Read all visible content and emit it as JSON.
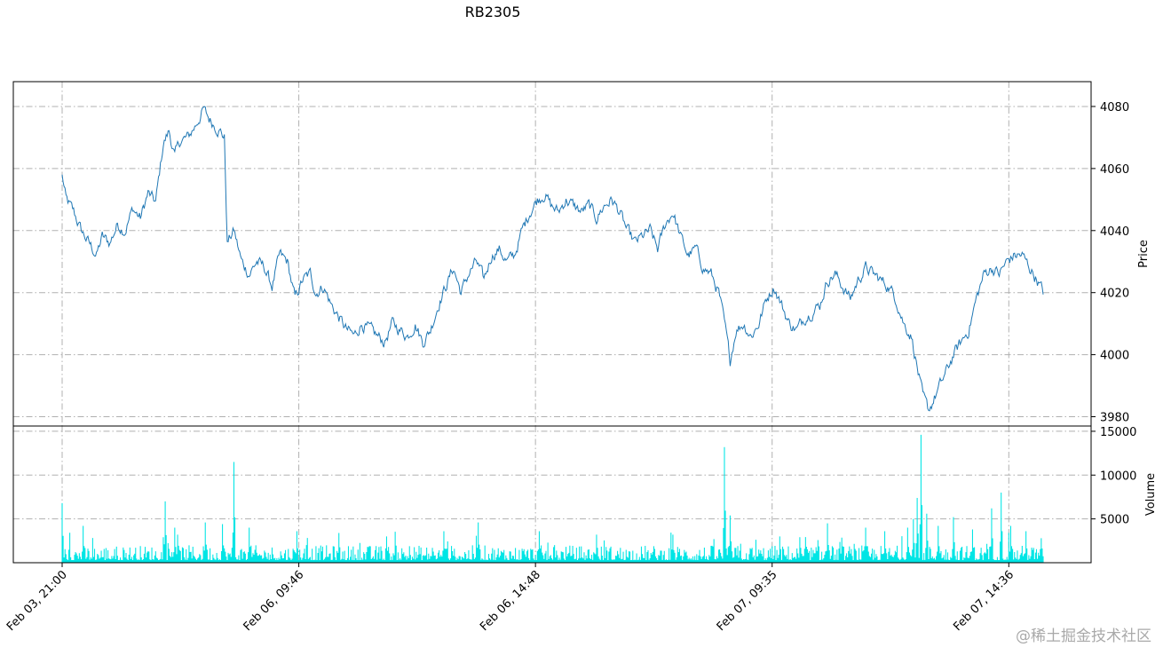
{
  "chart_data": {
    "type": "line",
    "title": "RB2305",
    "price_panel": {
      "ylabel": "Price",
      "ylim": [
        3977,
        4088
      ],
      "yticks": [
        3980,
        4000,
        4020,
        4040,
        4060,
        4080
      ],
      "line_color": "#1f77b4",
      "anchors": [
        [
          0,
          4058
        ],
        [
          4,
          4050
        ],
        [
          12,
          4046
        ],
        [
          20,
          4040
        ],
        [
          28,
          4036
        ],
        [
          36,
          4032
        ],
        [
          42,
          4038
        ],
        [
          50,
          4036
        ],
        [
          58,
          4042
        ],
        [
          66,
          4040
        ],
        [
          74,
          4047
        ],
        [
          82,
          4044
        ],
        [
          90,
          4052
        ],
        [
          98,
          4049
        ],
        [
          106,
          4068
        ],
        [
          112,
          4072
        ],
        [
          118,
          4064
        ],
        [
          124,
          4069
        ],
        [
          132,
          4070
        ],
        [
          140,
          4074
        ],
        [
          148,
          4079
        ],
        [
          154,
          4076
        ],
        [
          160,
          4074
        ],
        [
          166,
          4072
        ],
        [
          170,
          4070
        ],
        [
          173,
          4036
        ],
        [
          180,
          4040
        ],
        [
          188,
          4030
        ],
        [
          196,
          4026
        ],
        [
          204,
          4030
        ],
        [
          212,
          4028
        ],
        [
          220,
          4022
        ],
        [
          228,
          4032
        ],
        [
          236,
          4030
        ],
        [
          244,
          4018
        ],
        [
          252,
          4024
        ],
        [
          260,
          4026
        ],
        [
          266,
          4020
        ],
        [
          274,
          4022
        ],
        [
          282,
          4016
        ],
        [
          290,
          4012
        ],
        [
          298,
          4008
        ],
        [
          306,
          4006
        ],
        [
          314,
          4010
        ],
        [
          322,
          4008
        ],
        [
          330,
          4006
        ],
        [
          338,
          4004
        ],
        [
          346,
          4010
        ],
        [
          354,
          4008
        ],
        [
          362,
          4006
        ],
        [
          370,
          4010
        ],
        [
          378,
          4004
        ],
        [
          386,
          4008
        ],
        [
          394,
          4016
        ],
        [
          402,
          4022
        ],
        [
          410,
          4028
        ],
        [
          418,
          4020
        ],
        [
          426,
          4026
        ],
        [
          434,
          4030
        ],
        [
          442,
          4024
        ],
        [
          450,
          4032
        ],
        [
          458,
          4034
        ],
        [
          466,
          4030
        ],
        [
          474,
          4032
        ],
        [
          482,
          4040
        ],
        [
          490,
          4046
        ],
        [
          498,
          4050
        ],
        [
          506,
          4052
        ],
        [
          512,
          4048
        ],
        [
          520,
          4046
        ],
        [
          528,
          4050
        ],
        [
          536,
          4048
        ],
        [
          544,
          4046
        ],
        [
          552,
          4048
        ],
        [
          560,
          4044
        ],
        [
          568,
          4048
        ],
        [
          576,
          4050
        ],
        [
          584,
          4046
        ],
        [
          592,
          4040
        ],
        [
          600,
          4036
        ],
        [
          608,
          4038
        ],
        [
          616,
          4040
        ],
        [
          624,
          4034
        ],
        [
          632,
          4042
        ],
        [
          640,
          4046
        ],
        [
          648,
          4038
        ],
        [
          656,
          4032
        ],
        [
          664,
          4034
        ],
        [
          672,
          4028
        ],
        [
          680,
          4026
        ],
        [
          688,
          4020
        ],
        [
          694,
          4010
        ],
        [
          700,
          3998
        ],
        [
          706,
          4008
        ],
        [
          714,
          4010
        ],
        [
          722,
          4006
        ],
        [
          730,
          4010
        ],
        [
          738,
          4018
        ],
        [
          746,
          4022
        ],
        [
          754,
          4016
        ],
        [
          762,
          4010
        ],
        [
          770,
          4008
        ],
        [
          778,
          4012
        ],
        [
          786,
          4014
        ],
        [
          794,
          4016
        ],
        [
          802,
          4024
        ],
        [
          810,
          4026
        ],
        [
          818,
          4022
        ],
        [
          826,
          4018
        ],
        [
          834,
          4024
        ],
        [
          842,
          4028
        ],
        [
          850,
          4026
        ],
        [
          858,
          4024
        ],
        [
          866,
          4022
        ],
        [
          874,
          4018
        ],
        [
          882,
          4010
        ],
        [
          890,
          4006
        ],
        [
          896,
          3996
        ],
        [
          902,
          3986
        ],
        [
          908,
          3982
        ],
        [
          914,
          3986
        ],
        [
          920,
          3990
        ],
        [
          926,
          3994
        ],
        [
          934,
          4000
        ],
        [
          942,
          4004
        ],
        [
          950,
          4008
        ],
        [
          958,
          4018
        ],
        [
          966,
          4026
        ],
        [
          974,
          4028
        ],
        [
          982,
          4026
        ],
        [
          990,
          4030
        ],
        [
          998,
          4032
        ],
        [
          1006,
          4032
        ],
        [
          1014,
          4028
        ],
        [
          1022,
          4024
        ],
        [
          1028,
          4020
        ]
      ]
    },
    "volume_panel": {
      "ylabel": "Volume",
      "ylim": [
        0,
        15600
      ],
      "yticks": [
        5000,
        10000,
        15000
      ],
      "bar_color": "#00e5e5",
      "spikes": [
        [
          0,
          6800
        ],
        [
          22,
          4200
        ],
        [
          108,
          7000
        ],
        [
          118,
          4000
        ],
        [
          150,
          4600
        ],
        [
          168,
          4400
        ],
        [
          180,
          11500
        ],
        [
          196,
          4000
        ],
        [
          246,
          3600
        ],
        [
          290,
          3400
        ],
        [
          340,
          3000
        ],
        [
          400,
          3600
        ],
        [
          436,
          4600
        ],
        [
          500,
          3600
        ],
        [
          560,
          3200
        ],
        [
          640,
          3200
        ],
        [
          694,
          13200
        ],
        [
          700,
          5400
        ],
        [
          752,
          3000
        ],
        [
          802,
          4500
        ],
        [
          842,
          4000
        ],
        [
          862,
          3600
        ],
        [
          886,
          4000
        ],
        [
          892,
          5000
        ],
        [
          896,
          7400
        ],
        [
          900,
          14600
        ],
        [
          906,
          5600
        ],
        [
          918,
          4200
        ],
        [
          934,
          5200
        ],
        [
          954,
          3800
        ],
        [
          974,
          6200
        ],
        [
          984,
          8000
        ],
        [
          994,
          4200
        ],
        [
          1010,
          3600
        ],
        [
          1026,
          2800
        ]
      ]
    },
    "x_axis": {
      "n_points": 1029,
      "tick_labels": [
        "Feb 03, 21:00",
        "Feb 06, 09:46",
        "Feb 06, 14:48",
        "Feb 07, 09:35",
        "Feb 07, 14:36"
      ],
      "tick_index": [
        0,
        248,
        496,
        744,
        992
      ]
    }
  },
  "watermark": "@稀土掘金技术社区"
}
